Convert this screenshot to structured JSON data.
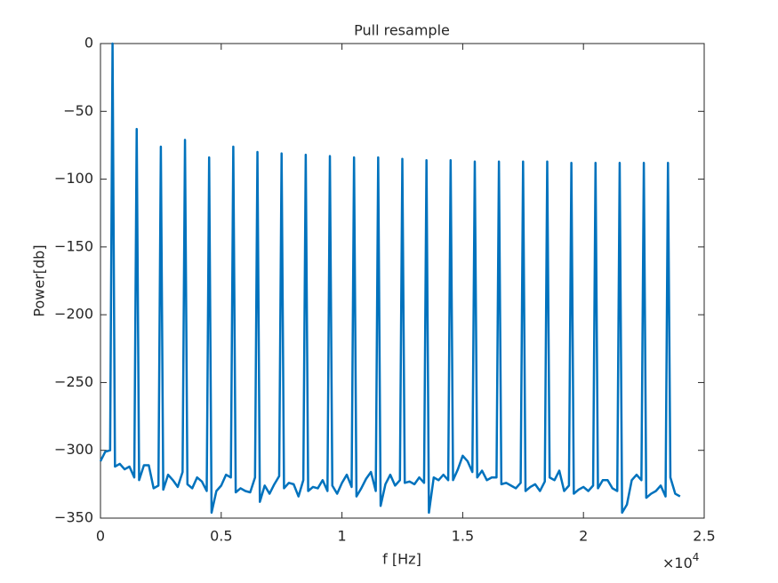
{
  "chart_data": {
    "type": "line",
    "title": "Pull resample",
    "xlabel": "f [Hz]",
    "ylabel": "Power[db]",
    "x_multiplier": {
      "base": "×10",
      "exponent": "4"
    },
    "xlim": [
      0,
      25000
    ],
    "xticks": [
      0,
      {
        "value": 5000,
        "label": "0.5"
      },
      {
        "value": 10000,
        "label": "1"
      },
      {
        "value": 15000,
        "label": "1.5"
      },
      {
        "value": 20000,
        "label": "2"
      },
      {
        "value": 25000,
        "label": "2.5"
      }
    ],
    "ylim": [
      -350,
      0
    ],
    "yticks": [
      {
        "value": -350,
        "label": "−350"
      },
      {
        "value": -300,
        "label": "−300"
      },
      {
        "value": -250,
        "label": "−250"
      },
      {
        "value": -200,
        "label": "−200"
      },
      {
        "value": -150,
        "label": "−150"
      },
      {
        "value": -100,
        "label": "−100"
      },
      {
        "value": -50,
        "label": "−50"
      },
      0
    ],
    "grid": false,
    "color": "#0072bd",
    "x": [
      0,
      200,
      400,
      500,
      600,
      800,
      1000,
      1200,
      1400,
      1500,
      1600,
      1800,
      2000,
      2200,
      2400,
      2500,
      2600,
      2800,
      3000,
      3200,
      3400,
      3500,
      3600,
      3800,
      4000,
      4200,
      4400,
      4500,
      4600,
      4800,
      5000,
      5200,
      5400,
      5500,
      5600,
      5800,
      6000,
      6200,
      6400,
      6500,
      6600,
      6800,
      7000,
      7200,
      7400,
      7500,
      7600,
      7800,
      8000,
      8200,
      8400,
      8500,
      8600,
      8800,
      9000,
      9200,
      9400,
      9500,
      9600,
      9800,
      10000,
      10200,
      10400,
      10500,
      10600,
      10800,
      11000,
      11200,
      11400,
      11500,
      11600,
      11800,
      12000,
      12200,
      12400,
      12500,
      12600,
      12800,
      13000,
      13200,
      13400,
      13500,
      13600,
      13800,
      14000,
      14200,
      14400,
      14500,
      14600,
      14800,
      15000,
      15200,
      15400,
      15500,
      15600,
      15800,
      16000,
      16200,
      16400,
      16500,
      16600,
      16800,
      17000,
      17200,
      17400,
      17500,
      17600,
      17800,
      18000,
      18200,
      18400,
      18500,
      18600,
      18800,
      19000,
      19200,
      19400,
      19500,
      19600,
      19800,
      20000,
      20200,
      20400,
      20500,
      20600,
      20800,
      21000,
      21200,
      21400,
      21500,
      21600,
      21800,
      22000,
      22200,
      22400,
      22500,
      22600,
      22800,
      23000,
      23200,
      23400,
      23500,
      23600,
      23800,
      24000
    ],
    "values": [
      -308,
      -301,
      -300,
      0,
      -312,
      -310,
      -314,
      -312,
      -320,
      -63,
      -322,
      -311,
      -311,
      -328,
      -326,
      -76,
      -329,
      -318,
      -322,
      -327,
      -316,
      -71,
      -325,
      -328,
      -320,
      -323,
      -330,
      -84,
      -346,
      -330,
      -326,
      -318,
      -320,
      -76,
      -331,
      -328,
      -330,
      -331,
      -320,
      -80,
      -338,
      -326,
      -332,
      -325,
      -319,
      -81,
      -328,
      -324,
      -325,
      -334,
      -322,
      -82,
      -330,
      -327,
      -328,
      -322,
      -330,
      -83,
      -326,
      -332,
      -324,
      -318,
      -327,
      -84,
      -334,
      -328,
      -321,
      -316,
      -330,
      -84,
      -341,
      -325,
      -318,
      -326,
      -322,
      -85,
      -324,
      -323,
      -325,
      -320,
      -324,
      -86,
      -346,
      -320,
      -322,
      -318,
      -322,
      -86,
      -322,
      -314,
      -304,
      -308,
      -316,
      -87,
      -320,
      -315,
      -322,
      -320,
      -320,
      -87,
      -325,
      -324,
      -326,
      -328,
      -324,
      -87,
      -330,
      -327,
      -325,
      -330,
      -323,
      -87,
      -320,
      -322,
      -315,
      -330,
      -326,
      -88,
      -332,
      -329,
      -327,
      -330,
      -326,
      -88,
      -328,
      -322,
      -322,
      -328,
      -330,
      -88,
      -346,
      -340,
      -322,
      -318,
      -322,
      -88,
      -335,
      -332,
      -330,
      -326,
      -334,
      -88,
      -320,
      -332,
      -334
    ]
  }
}
